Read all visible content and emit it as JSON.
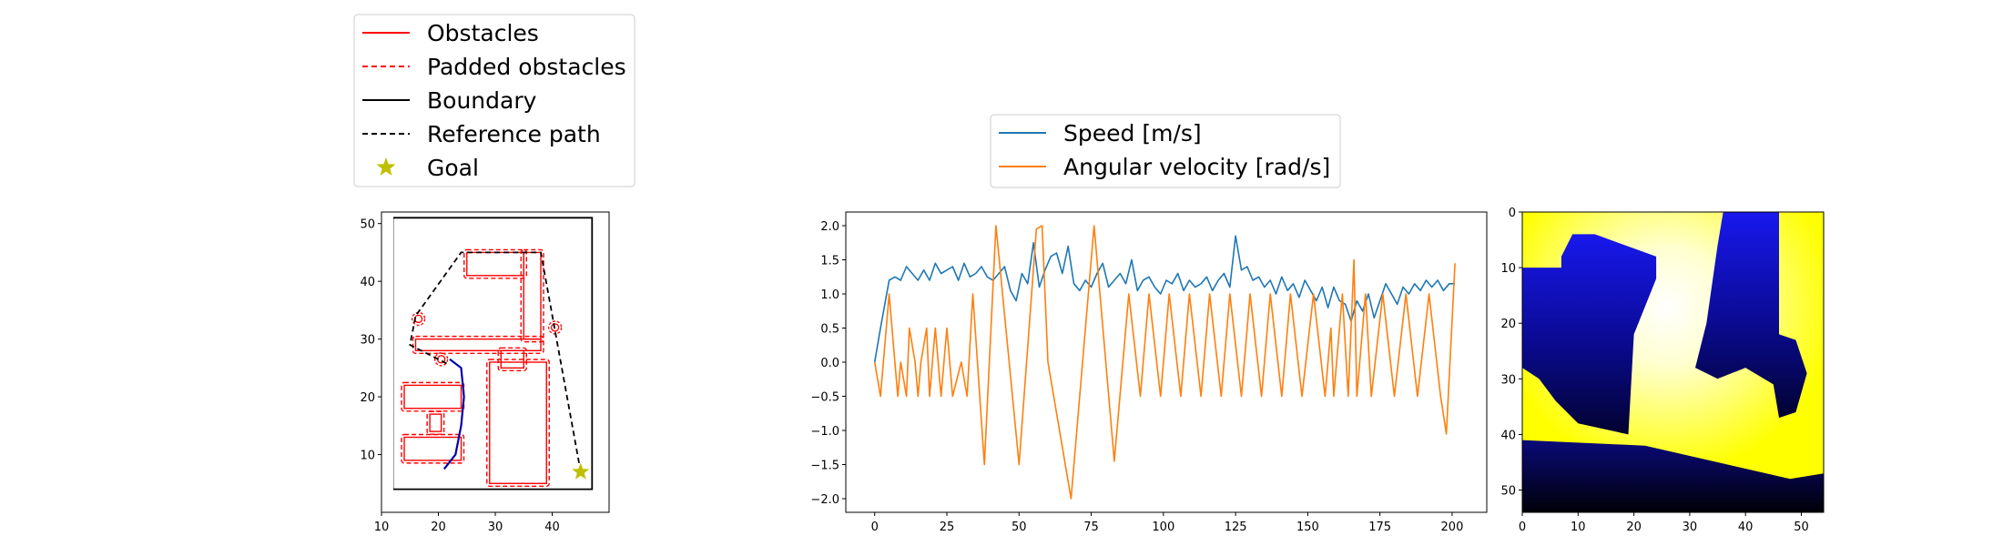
{
  "chart_data": [
    {
      "type": "scatter",
      "xlim": [
        10,
        50
      ],
      "ylim": [
        0,
        52
      ],
      "xticks": [
        "10",
        "20",
        "30",
        "40"
      ],
      "xtick_values": [
        10,
        20,
        30,
        40
      ],
      "yticks": [
        "10",
        "20",
        "30",
        "40",
        "50"
      ],
      "ytick_values": [
        10,
        20,
        30,
        40,
        50
      ],
      "legend": {
        "placement": "above",
        "entries": [
          {
            "label": "Obstacles",
            "style": "solid",
            "color": "#ff0000"
          },
          {
            "label": "Padded obstacles",
            "style": "dashed",
            "color": "#ff0000"
          },
          {
            "label": "Boundary",
            "style": "solid",
            "color": "#000000"
          },
          {
            "label": "Reference path",
            "style": "dashed",
            "color": "#000000"
          },
          {
            "label": "Goal",
            "style": "star",
            "color": "#bfbf00"
          }
        ]
      },
      "boundary": [
        [
          12,
          4
        ],
        [
          47,
          4
        ],
        [
          47,
          51
        ],
        [
          12,
          51
        ]
      ],
      "obstacles": [
        [
          [
            25,
            41
          ],
          [
            35,
            41
          ],
          [
            35,
            45
          ],
          [
            25,
            45
          ]
        ],
        [
          [
            35,
            30
          ],
          [
            38,
            30
          ],
          [
            38,
            45
          ],
          [
            35,
            45
          ]
        ],
        [
          [
            16,
            28
          ],
          [
            38,
            28
          ],
          [
            38,
            30
          ],
          [
            16,
            30
          ]
        ],
        [
          [
            31,
            25
          ],
          [
            35,
            25
          ],
          [
            35,
            28
          ],
          [
            31,
            28
          ]
        ],
        [
          [
            29,
            5
          ],
          [
            39,
            5
          ],
          [
            39,
            26
          ],
          [
            29,
            26
          ]
        ],
        [
          [
            14,
            18
          ],
          [
            24,
            18
          ],
          [
            24,
            22
          ],
          [
            14,
            22
          ]
        ],
        [
          [
            14,
            9
          ],
          [
            24,
            9
          ],
          [
            24,
            13
          ],
          [
            14,
            13
          ]
        ],
        [
          [
            18.5,
            14
          ],
          [
            20.5,
            14
          ],
          [
            20.5,
            17
          ],
          [
            18.5,
            17
          ]
        ]
      ],
      "small_obstacles": [
        {
          "x": 16.5,
          "y": 33.5
        },
        {
          "x": 40.5,
          "y": 32
        },
        {
          "x": 20.5,
          "y": 26.5
        }
      ],
      "reference_path": [
        [
          45,
          7
        ],
        [
          38,
          45
        ],
        [
          24,
          45
        ],
        [
          16,
          34
        ],
        [
          15,
          29
        ],
        [
          22,
          25.5
        ]
      ],
      "executed_path": [
        [
          21,
          7.5
        ],
        [
          23,
          10
        ],
        [
          24,
          15
        ],
        [
          24.5,
          20
        ],
        [
          24,
          25
        ],
        [
          22,
          26.5
        ]
      ],
      "goal": {
        "x": 45,
        "y": 7
      }
    },
    {
      "type": "line",
      "xlim": [
        -10,
        212
      ],
      "ylim": [
        -2.2,
        2.2
      ],
      "xticks": [
        "0",
        "25",
        "50",
        "75",
        "100",
        "125",
        "150",
        "175",
        "200"
      ],
      "xtick_values": [
        0,
        25,
        50,
        75,
        100,
        125,
        150,
        175,
        200
      ],
      "yticks": [
        "−2.0",
        "−1.5",
        "−1.0",
        "−0.5",
        "0.0",
        "0.5",
        "1.0",
        "1.5",
        "2.0"
      ],
      "ytick_values": [
        -2.0,
        -1.5,
        -1.0,
        -0.5,
        0.0,
        0.5,
        1.0,
        1.5,
        2.0
      ],
      "legend": {
        "placement": "above"
      },
      "series": [
        {
          "name": "Speed [m/s]",
          "color": "#1f77b4",
          "x": [
            0,
            2,
            5,
            7,
            9,
            11,
            13,
            15,
            17,
            19,
            21,
            23,
            25,
            27,
            29,
            31,
            33,
            35,
            37,
            39,
            41,
            43,
            45,
            47,
            49,
            51,
            53,
            55,
            57,
            59,
            61,
            63,
            65,
            67,
            69,
            71,
            73,
            75,
            77,
            79,
            81,
            83,
            85,
            87,
            89,
            91,
            93,
            95,
            97,
            99,
            101,
            103,
            105,
            107,
            109,
            111,
            113,
            115,
            117,
            119,
            121,
            123,
            125,
            127,
            129,
            131,
            133,
            135,
            137,
            139,
            141,
            143,
            145,
            147,
            149,
            151,
            153,
            155,
            157,
            159,
            161,
            163,
            165,
            167,
            169,
            171,
            173,
            175,
            177,
            179,
            181,
            183,
            185,
            187,
            189,
            191,
            193,
            195,
            197,
            199,
            201
          ],
          "values": [
            0.0,
            0.5,
            1.2,
            1.25,
            1.2,
            1.4,
            1.3,
            1.2,
            1.35,
            1.2,
            1.45,
            1.3,
            1.35,
            1.4,
            1.2,
            1.45,
            1.25,
            1.3,
            1.4,
            1.25,
            1.2,
            1.3,
            1.4,
            1.05,
            0.9,
            1.3,
            1.15,
            1.75,
            1.1,
            1.35,
            1.55,
            1.6,
            1.3,
            1.7,
            1.15,
            1.05,
            1.2,
            1.1,
            1.3,
            1.45,
            1.1,
            1.2,
            1.3,
            1.15,
            1.5,
            1.05,
            1.2,
            1.25,
            1.1,
            1.0,
            1.2,
            1.15,
            1.3,
            1.05,
            1.2,
            1.1,
            1.15,
            1.25,
            1.05,
            1.2,
            1.3,
            1.1,
            1.85,
            1.35,
            1.4,
            1.2,
            1.25,
            1.1,
            1.2,
            1.0,
            1.25,
            1.05,
            1.15,
            0.95,
            1.2,
            1.05,
            0.9,
            1.1,
            0.8,
            1.1,
            0.9,
            0.85,
            0.6,
            0.9,
            0.75,
            1.0,
            0.65,
            0.9,
            1.15,
            1.0,
            0.85,
            1.1,
            1.0,
            1.15,
            1.05,
            1.2,
            1.1,
            1.2,
            1.05,
            1.15,
            1.15
          ]
        },
        {
          "name": "Angular velocity [rad/s]",
          "color": "#ff7f0e",
          "x": [
            0,
            2,
            5,
            7,
            8,
            9,
            11,
            12,
            14,
            15,
            16,
            18,
            19,
            20,
            21,
            23,
            25,
            27,
            30,
            32,
            34,
            38,
            42,
            50,
            56,
            58,
            60,
            68,
            76,
            83,
            88,
            92,
            95,
            99,
            102,
            106,
            109,
            113,
            116,
            120,
            123,
            127,
            130,
            134,
            137,
            141,
            144,
            148,
            152,
            156,
            158,
            159,
            162,
            164,
            166,
            167,
            170,
            172,
            176,
            180,
            184,
            188,
            192,
            196,
            198,
            201
          ],
          "values": [
            0.0,
            -0.5,
            1.0,
            0.0,
            -0.5,
            0.0,
            -0.5,
            0.5,
            0.0,
            -0.5,
            0.0,
            0.5,
            -0.5,
            0.0,
            0.5,
            -0.5,
            0.5,
            -0.5,
            0.0,
            -0.5,
            1.0,
            -1.5,
            2.0,
            -1.5,
            1.95,
            2.0,
            0.0,
            -2.0,
            2.0,
            -1.45,
            1.0,
            -0.5,
            1.0,
            -0.5,
            1.0,
            -0.5,
            1.0,
            -0.5,
            1.0,
            -0.5,
            1.0,
            -0.5,
            1.0,
            -0.5,
            1.0,
            -0.5,
            1.0,
            -0.5,
            1.0,
            -0.5,
            0.5,
            -0.5,
            1.0,
            -0.5,
            1.5,
            -0.5,
            1.0,
            -0.5,
            1.0,
            -0.5,
            1.0,
            -0.5,
            1.0,
            -0.5,
            -1.05,
            1.45
          ]
        }
      ]
    },
    {
      "type": "heatmap",
      "xlim": [
        0,
        54
      ],
      "ylim": [
        54,
        0
      ],
      "xticks": [
        "0",
        "10",
        "20",
        "30",
        "40",
        "50"
      ],
      "xtick_values": [
        0,
        10,
        20,
        30,
        40,
        50
      ],
      "yticks": [
        "0",
        "10",
        "20",
        "30",
        "40",
        "50"
      ],
      "ytick_values": [
        0,
        10,
        20,
        30,
        40,
        50
      ],
      "colormap": [
        "#000000",
        "#0000ff",
        "#ffffff",
        "#ffff00"
      ],
      "regions": [
        {
          "kind": "hot-center",
          "x": 26,
          "y": 17,
          "radius": 30
        },
        {
          "kind": "dark-blob",
          "points": [
            [
              0,
              10
            ],
            [
              7,
              10
            ],
            [
              7,
              8
            ],
            [
              9,
              4
            ],
            [
              13,
              4
            ],
            [
              24,
              8
            ],
            [
              24,
              12
            ],
            [
              20,
              22
            ],
            [
              19,
              40
            ],
            [
              10,
              38
            ],
            [
              6,
              34
            ],
            [
              3,
              30
            ],
            [
              0,
              28
            ]
          ]
        },
        {
          "kind": "dark-blob",
          "points": [
            [
              36,
              0
            ],
            [
              46,
              0
            ],
            [
              46,
              22
            ],
            [
              49,
              23
            ],
            [
              51,
              29
            ],
            [
              49,
              36
            ],
            [
              46,
              37
            ],
            [
              45,
              31
            ],
            [
              40,
              28
            ],
            [
              35,
              30
            ],
            [
              31,
              28
            ],
            [
              33,
              20
            ],
            [
              35,
              6
            ]
          ]
        },
        {
          "kind": "dark-floor",
          "points": [
            [
              0,
              41
            ],
            [
              22,
              42
            ],
            [
              48,
              48
            ],
            [
              54,
              47
            ],
            [
              54,
              54
            ],
            [
              0,
              54
            ]
          ]
        }
      ]
    }
  ]
}
